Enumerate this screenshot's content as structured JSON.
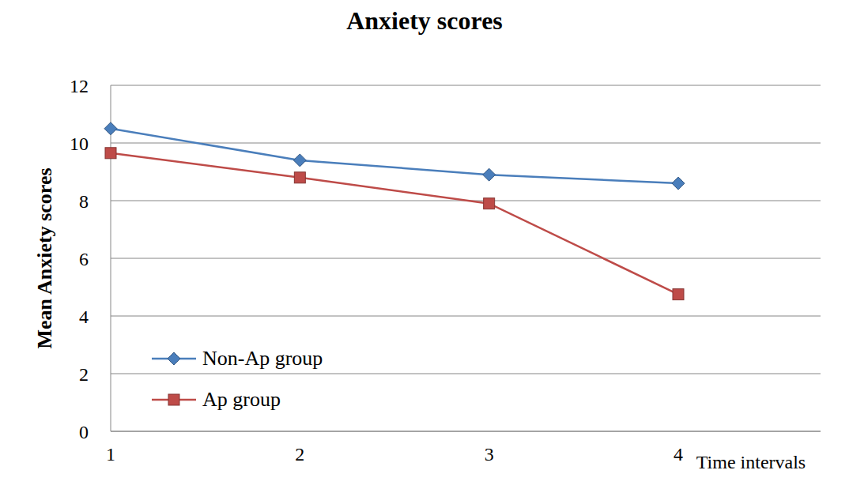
{
  "chart_data": {
    "type": "line",
    "title": "Anxiety scores",
    "x_label": "Time intervals",
    "y_label": "Mean Anxiety scores",
    "categories": [
      "1",
      "2",
      "3",
      "4"
    ],
    "series": [
      {
        "name": "Non-Ap group",
        "color": "#4a7ebb",
        "marker": "diamond",
        "values": [
          10.5,
          9.4,
          8.9,
          8.6
        ]
      },
      {
        "name": "Ap group",
        "color": "#be4b48",
        "marker": "square",
        "values": [
          9.65,
          8.8,
          7.9,
          4.75
        ]
      }
    ],
    "ylim": [
      0,
      12
    ],
    "yticks": [
      0,
      2,
      4,
      6,
      8,
      10,
      12
    ],
    "grid": true,
    "legend": "lower left"
  }
}
